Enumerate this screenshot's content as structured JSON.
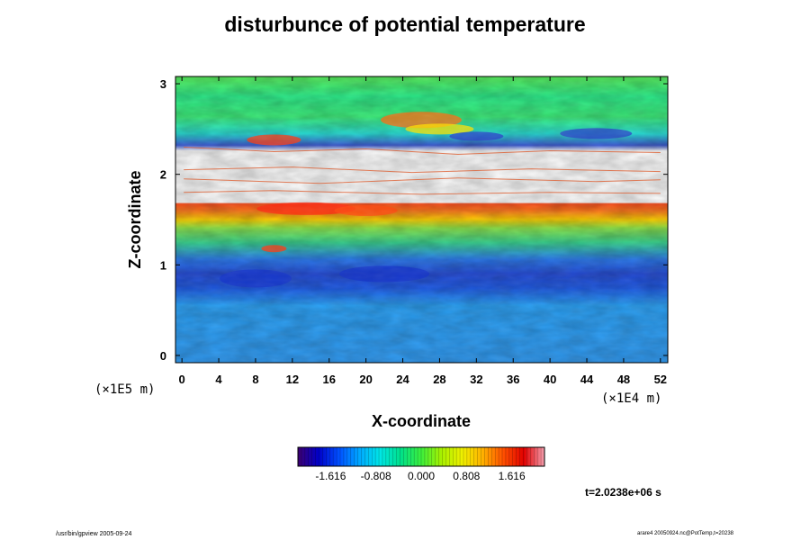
{
  "chart_data": {
    "type": "heatmap",
    "title": "disturbunce of potential temperature",
    "xlabel": "X-coordinate",
    "ylabel": "Z-coordinate",
    "x_unit": "(×1E4 m)",
    "y_unit": "(×1E5 m)",
    "x_ticks": [
      0,
      4,
      8,
      12,
      16,
      20,
      24,
      28,
      32,
      36,
      40,
      44,
      48,
      52
    ],
    "y_ticks": [
      0,
      1,
      2,
      3
    ],
    "xlim": [
      -0.7,
      52.8
    ],
    "ylim": [
      -0.08,
      3.08
    ],
    "colorbar": {
      "ticks": [
        "-1.616",
        "-0.808",
        "0.000",
        "0.808",
        "1.616"
      ],
      "range": [
        -2.2,
        2.2
      ],
      "colors": [
        "#3d0070",
        "#0000c8",
        "#0050ff",
        "#00a8ff",
        "#00e6e6",
        "#00e08a",
        "#3cef3c",
        "#a8f000",
        "#f0f000",
        "#ffb000",
        "#ff5000",
        "#e00000",
        "#f5a0b0"
      ]
    },
    "field_layers": [
      {
        "z_range": [
          0.0,
          0.82
        ],
        "value": -0.85,
        "description": "lower region, mostly cyan-blue"
      },
      {
        "z_range": [
          0.82,
          1.25
        ],
        "value": -1.2,
        "description": "dark blue turbulent band"
      },
      {
        "z_range": [
          1.25,
          1.45
        ],
        "value": 0.3,
        "description": "green-yellow band"
      },
      {
        "z_range": [
          1.55,
          1.72
        ],
        "value": 1.4,
        "description": "orange-red band with peaks near x=12-24"
      },
      {
        "z_range": [
          1.72,
          2.35
        ],
        "value": null,
        "description": "white out-of-range region with streaks"
      },
      {
        "z_range": [
          2.35,
          3.08
        ],
        "value": 0.1,
        "description": "upper green-cyan region with red/orange patches"
      }
    ]
  },
  "annotation": {
    "time": "t=2.0238e+06 s"
  },
  "footer": {
    "left": "/usr/bin/gpview 2005-09-24",
    "right": "arare4 20050924.nc@PotTemp,t=20238"
  }
}
